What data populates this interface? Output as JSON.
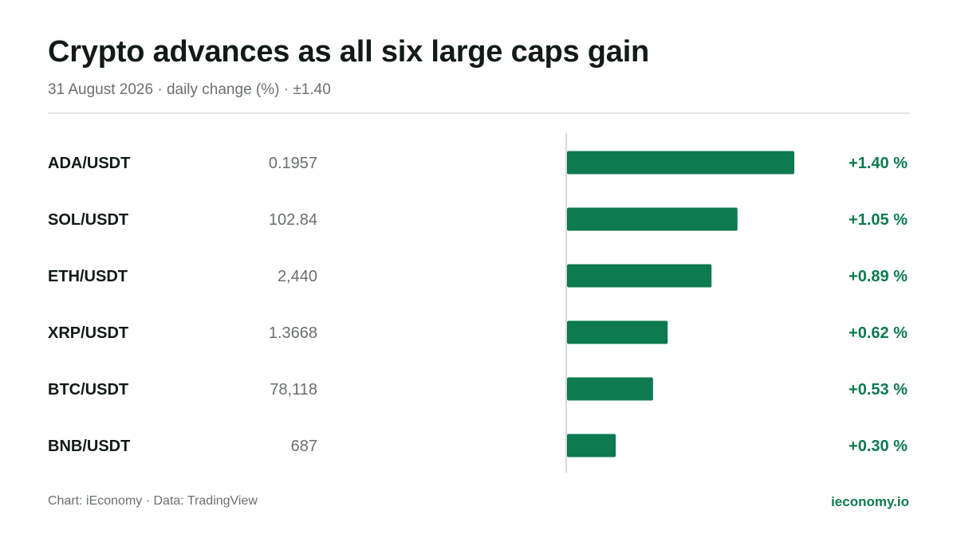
{
  "header": {
    "title": "Crypto advances as all six large caps gain",
    "subtitle": "31 August 2026 · daily change (%) · ±1.40"
  },
  "footer": {
    "source": "Chart: iEconomy · Data: TradingView",
    "domain": "ieconomy.io"
  },
  "colors": {
    "positive": "#0d7a4f",
    "pair_text": "#111a17",
    "price_text": "#6b6f6e",
    "baseline": "#d6d9d8"
  },
  "chart_data": {
    "type": "bar",
    "orientation": "horizontal",
    "xlim": [
      0,
      1.4
    ],
    "rows": [
      {
        "pair": "ADA/USDT",
        "price": "0.1957",
        "change": 1.4,
        "label": "+1.40 %"
      },
      {
        "pair": "SOL/USDT",
        "price": "102.84",
        "change": 1.05,
        "label": "+1.05 %"
      },
      {
        "pair": "ETH/USDT",
        "price": "2,440",
        "change": 0.89,
        "label": "+0.89 %"
      },
      {
        "pair": "XRP/USDT",
        "price": "1.3668",
        "change": 0.62,
        "label": "+0.62 %"
      },
      {
        "pair": "BTC/USDT",
        "price": "78,118",
        "change": 0.53,
        "label": "+0.53 %"
      },
      {
        "pair": "BNB/USDT",
        "price": "687",
        "change": 0.3,
        "label": "+0.30 %"
      }
    ]
  }
}
